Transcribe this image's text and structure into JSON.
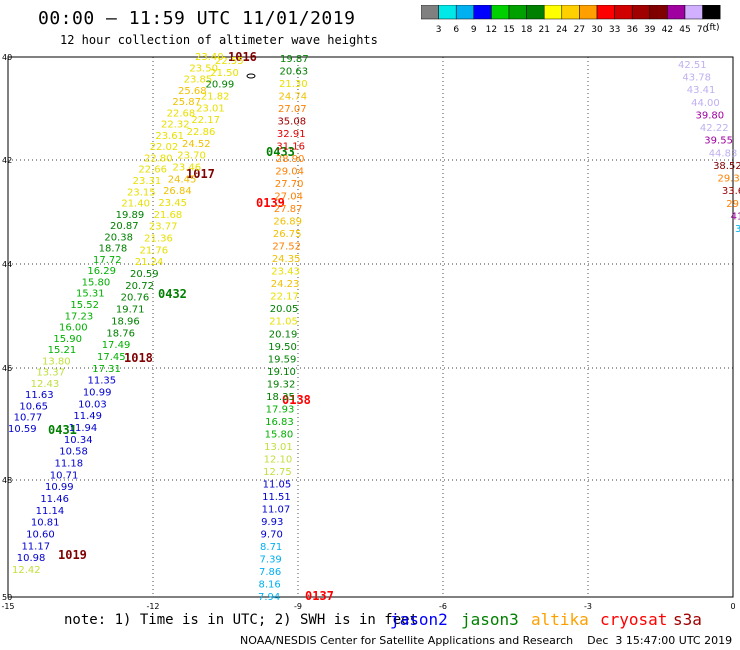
{
  "header": {
    "title": "00:00 – 11:59 UTC 11/01/2019",
    "subtitle": "12 hour collection of altimeter wave heights"
  },
  "colorbar": {
    "unit": "(ft)",
    "labels": [
      "3",
      "6",
      "9",
      "12",
      "15",
      "18",
      "21",
      "24",
      "27",
      "30",
      "33",
      "36",
      "39",
      "42",
      "45",
      "70"
    ],
    "colors": [
      "#808080",
      "#00e8e8",
      "#00b0f0",
      "#0000ff",
      "#00d000",
      "#00a000",
      "#008000",
      "#ffff00",
      "#ffd000",
      "#ffa000",
      "#ff0000",
      "#d00000",
      "#a00000",
      "#800000",
      "#a000a0",
      "#d0b0ff",
      "#000000"
    ]
  },
  "map": {
    "lat_labels": [
      "40",
      "42",
      "44",
      "46",
      "48",
      "50"
    ],
    "lon_labels": [
      "-15",
      "-12",
      "-9",
      "-6",
      "-3",
      "0"
    ],
    "pressure_labels": [
      {
        "text": "1016",
        "color": "#800000"
      },
      {
        "text": "0433",
        "color": "#008000"
      },
      {
        "text": "1017",
        "color": "#800000"
      },
      {
        "text": "0139",
        "color": "#ff0000"
      },
      {
        "text": "0432",
        "color": "#008000"
      },
      {
        "text": "1018",
        "color": "#800000"
      },
      {
        "text": "0138",
        "color": "#ff0000"
      },
      {
        "text": "0431",
        "color": "#008000"
      },
      {
        "text": "1019",
        "color": "#800000"
      },
      {
        "text": "0137",
        "color": "#ff0000"
      }
    ]
  },
  "tracks": [
    {
      "name": "track-a",
      "color_hint": "yellow-green-blue",
      "values": [
        "23.40",
        "23.50",
        "23.85",
        "25.68",
        "25.87",
        "22.68",
        "22.32",
        "23.61",
        "22.02",
        "22.80",
        "22.66",
        "23.31",
        "23.15",
        "21.40",
        "19.89",
        "20.87",
        "20.38",
        "18.78",
        "17.72",
        "16.29",
        "15.80",
        "15.31",
        "15.52",
        "17.23",
        "16.00",
        "15.90",
        "15.21",
        "13.80",
        "13.37",
        "12.43",
        "11.63",
        "10.65",
        "10.77",
        "10.59"
      ]
    },
    {
      "name": "track-b",
      "values": [
        "22.55",
        "21.50",
        "20.99",
        "21.82",
        "23.01",
        "22.17",
        "22.86",
        "24.52",
        "23.70",
        "23.46",
        "24.45",
        "26.84",
        "23.45",
        "21.68",
        "23.77",
        "21.36",
        "21.76",
        "21.24",
        "20.59",
        "20.72",
        "20.76",
        "19.71",
        "18.96",
        "18.76",
        "17.49",
        "17.45",
        "17.31",
        "11.35",
        "10.99",
        "10.03",
        "11.49",
        "11.94",
        "10.34",
        "10.58",
        "11.18",
        "10.71",
        "10.99",
        "11.46",
        "11.14",
        "10.81",
        "10.60",
        "11.17",
        "10.98",
        "12.42"
      ]
    },
    {
      "name": "track-c",
      "values": [
        "19.87",
        "20.63",
        "21.30",
        "24.74",
        "27.07",
        "35.08",
        "32.91",
        "31.16",
        "28.90",
        "29.04",
        "27.70",
        "27.04",
        "27.87",
        "26.89",
        "26.75",
        "27.52",
        "24.35",
        "23.43",
        "24.23",
        "22.17",
        "20.05",
        "21.05",
        "20.19",
        "19.50",
        "19.59",
        "19.10",
        "19.32",
        "18.35",
        "17.93",
        "16.83",
        "15.80",
        "13.01",
        "12.10",
        "12.75",
        "11.05",
        "11.51",
        "11.07",
        "9.93",
        "9.70",
        "8.71",
        "7.39",
        "7.86",
        "8.16",
        "7.94"
      ]
    },
    {
      "name": "track-d",
      "values": [
        "42.51",
        "43.78",
        "43.41",
        "44.00",
        "39.80",
        "42.22",
        "39.55",
        "44.83",
        "38.52",
        "29.3",
        "33.6",
        "29.",
        "41",
        "3"
      ]
    }
  ],
  "footer": {
    "note": "note: 1) Time is in UTC; 2) SWH is in feet",
    "satellites": [
      {
        "name": "jason2",
        "color": "#0000ff"
      },
      {
        "name": "jason3",
        "color": "#008000"
      },
      {
        "name": "altika",
        "color": "#ffa000"
      },
      {
        "name": "cryosat",
        "color": "#ff0000"
      },
      {
        "name": "s3a",
        "color": "#a00000"
      }
    ],
    "credit": "NOAA/NESDIS Center for Satellite Applications and Research    Dec  3 15:47:00 UTC 2019"
  }
}
